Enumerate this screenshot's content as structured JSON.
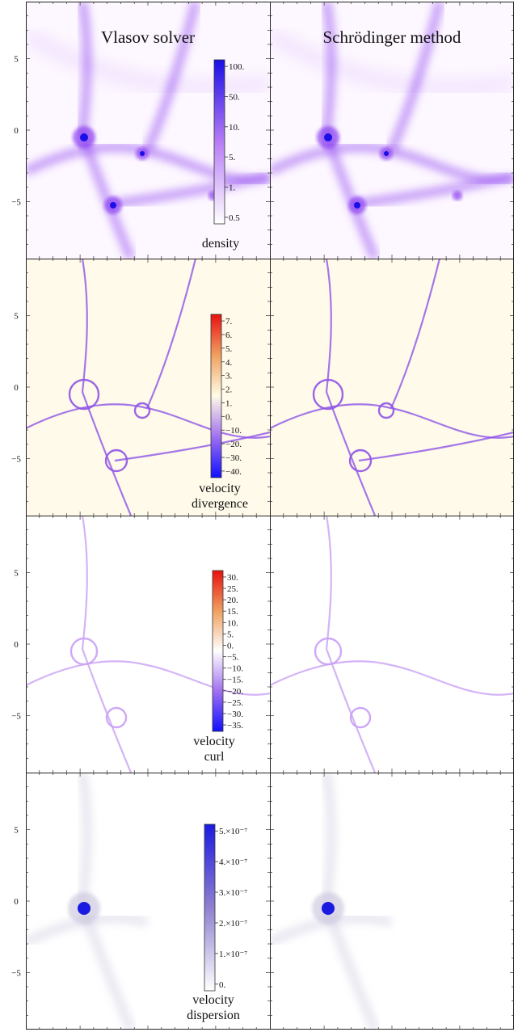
{
  "titles": {
    "left": "Vlasov solver",
    "right": "Schrödinger method"
  },
  "y_ticks": [
    "5",
    "0",
    "−5"
  ],
  "rows": [
    {
      "label_lines": [
        "density"
      ],
      "colorbar_ticks": [
        "100.",
        "50.",
        "10.",
        "5.",
        "1.",
        "0.5"
      ],
      "colors": [
        "#ffffff",
        "#b77cf5",
        "#1a0fe6"
      ],
      "bg": "#fdf7ff",
      "ink": "#8a3df0"
    },
    {
      "label_lines": [
        "velocity",
        "divergence"
      ],
      "colorbar_ticks": [
        "7.",
        "6.",
        "5.",
        "4.",
        "3.",
        "2.",
        "1.",
        "0.",
        "−10.",
        "−20.",
        "−30.",
        "−40."
      ],
      "colors": [
        "#1010ff",
        "#a070f0",
        "#fffbe6",
        "#f0a060",
        "#e81010"
      ],
      "bg": "#fffaea",
      "ink": "#8f55e6"
    },
    {
      "label_lines": [
        "velocity",
        "curl"
      ],
      "colorbar_ticks": [
        "30.",
        "25.",
        "20.",
        "15.",
        "10.",
        "5.",
        "0.",
        "−5.",
        "−10.",
        "−15.",
        "−20.",
        "−25.",
        "−30.",
        "−35."
      ],
      "colors": [
        "#1010ff",
        "#a070f0",
        "#ffffff",
        "#f0a060",
        "#e81010"
      ],
      "bg": "#ffffff",
      "ink": "#c9a0f5"
    },
    {
      "label_lines": [
        "velocity",
        "dispersion"
      ],
      "colorbar_ticks": [
        "5.×10⁻⁷",
        "4.×10⁻⁷",
        "3.×10⁻⁷",
        "2.×10⁻⁷",
        "1.×10⁻⁷",
        "0."
      ],
      "colors": [
        "#ffffff",
        "#9080d0",
        "#1a1ae0"
      ],
      "bg": "#ffffff",
      "ink": "#cfcbe0"
    }
  ]
}
